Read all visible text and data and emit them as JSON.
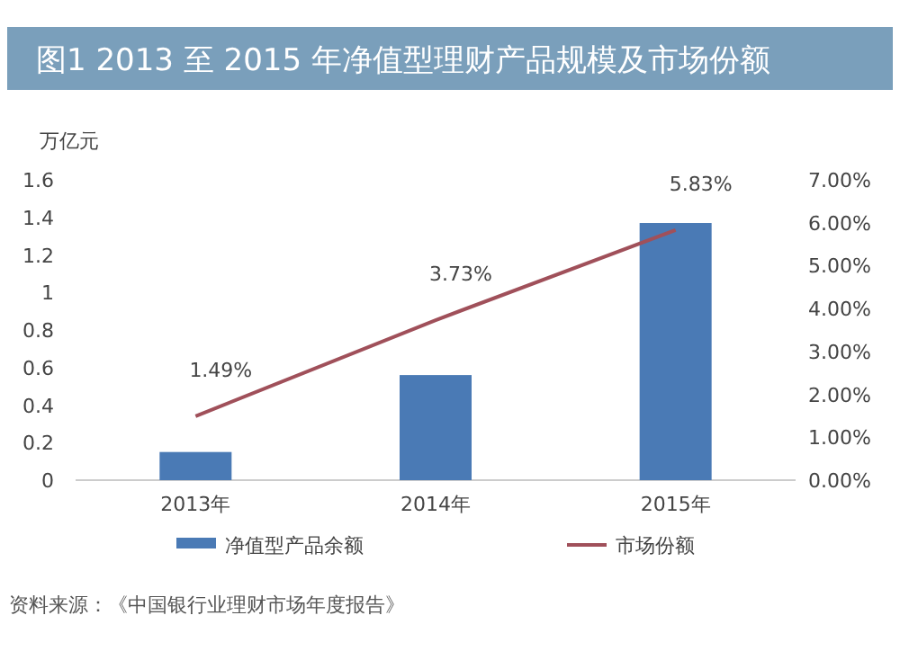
{
  "chart_data": {
    "type": "bar",
    "title": "图1  2013 至 2015 年净值型理财产品规模及市场份额",
    "ylabel": "万亿元",
    "categories": [
      "2013年",
      "2014年",
      "2015年"
    ],
    "series": [
      {
        "name": "净值型产品余额",
        "color": "#4a7ab5",
        "values": [
          0.15,
          0.56,
          1.37
        ]
      },
      {
        "name": "市场份额",
        "type": "line",
        "axis": "y2",
        "color": "#a0505a",
        "values": [
          1.49,
          3.73,
          5.83
        ],
        "value_labels": [
          "1.49%",
          "3.73%",
          "5.83%"
        ]
      }
    ],
    "ylim": [
      0,
      1.6
    ],
    "yticks": [
      0,
      0.2,
      0.4,
      0.6,
      0.8,
      1,
      1.2,
      1.4,
      1.6
    ],
    "y2lim": [
      0,
      7
    ],
    "y2ticks": [
      {
        "value": 0,
        "label": "0.00%"
      },
      {
        "value": 1,
        "label": "1.00%"
      },
      {
        "value": 2,
        "label": "2.00%"
      },
      {
        "value": 3,
        "label": "3.00%"
      },
      {
        "value": 4,
        "label": "4.00%"
      },
      {
        "value": 5,
        "label": "5.00%"
      },
      {
        "value": 6,
        "label": "6.00%"
      },
      {
        "value": 7,
        "label": "7.00%"
      }
    ],
    "legend": "bottom",
    "grid": false,
    "annotations": [
      "资料来源：《中国银行业理财市场年度报告》"
    ]
  }
}
